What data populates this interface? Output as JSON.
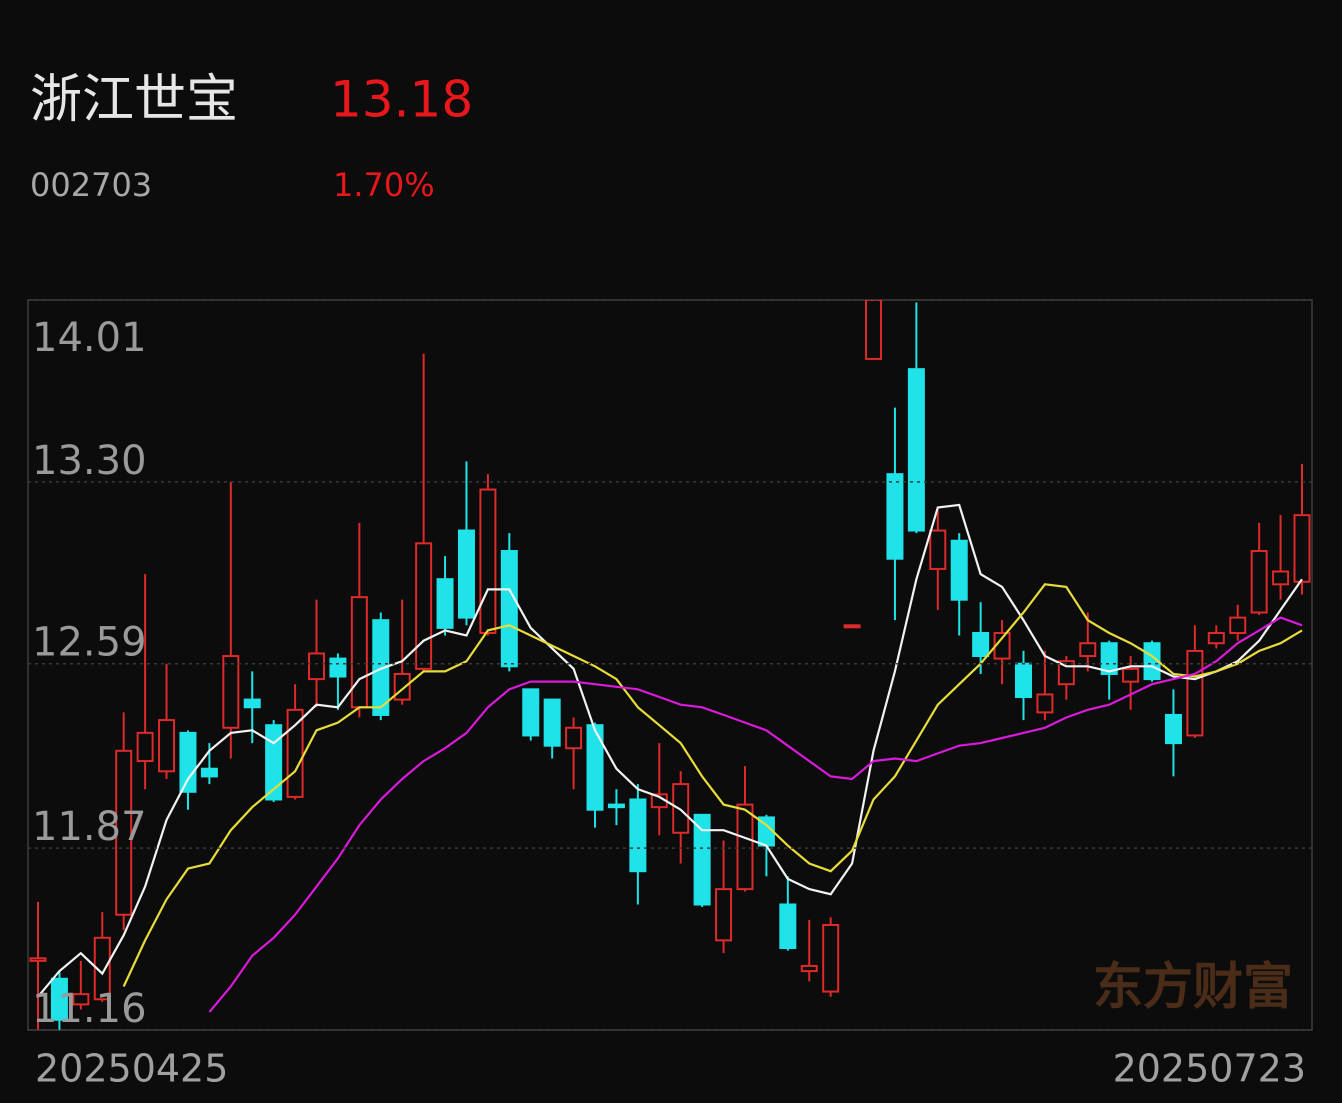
{
  "chart_data": {
    "type": "candlestick",
    "title": "浙江世宝",
    "subtitle": "002703",
    "price": "13.18",
    "change": "1.70%",
    "watermark": "东方财富",
    "up_color": "#dd2a2a",
    "down_color": "#1fe3e8",
    "ylim": [
      11.16,
      14.01
    ],
    "yticks": [
      14.01,
      {
        "value": 13.3,
        "label": "13.30"
      },
      12.59,
      11.87,
      11.16
    ],
    "grid": true,
    "categories": [
      "20250425",
      null,
      null,
      null,
      null,
      null,
      null,
      null,
      null,
      null,
      null,
      null,
      null,
      null,
      null,
      null,
      null,
      null,
      null,
      null,
      null,
      null,
      null,
      null,
      null,
      null,
      null,
      null,
      null,
      null,
      null,
      null,
      null,
      null,
      null,
      null,
      null,
      null,
      null,
      null,
      null,
      null,
      null,
      null,
      null,
      null,
      null,
      null,
      null,
      null,
      null,
      null,
      null,
      null,
      null,
      null,
      null,
      null,
      null,
      "20250723"
    ],
    "open": [
      11.43,
      11.36,
      11.26,
      11.28,
      11.61,
      12.21,
      12.17,
      12.32,
      12.18,
      12.34,
      12.45,
      12.35,
      12.07,
      12.53,
      12.61,
      12.42,
      12.76,
      12.45,
      12.57,
      12.92,
      13.11,
      12.71,
      13.03,
      12.49,
      12.45,
      12.26,
      12.35,
      12.04,
      12.06,
      12.03,
      11.93,
      12.0,
      11.51,
      11.71,
      11.99,
      11.65,
      11.39,
      11.31,
      12.74,
      13.78,
      13.33,
      13.74,
      12.96,
      13.07,
      12.71,
      12.61,
      12.59,
      12.4,
      12.51,
      12.62,
      12.67,
      12.52,
      12.67,
      12.39,
      12.31,
      12.67,
      12.71,
      12.79,
      12.9,
      12.91
    ],
    "high": [
      11.66,
      11.39,
      11.43,
      11.62,
      12.4,
      12.94,
      12.59,
      12.33,
      12.28,
      13.3,
      12.56,
      12.37,
      12.51,
      12.84,
      12.63,
      13.14,
      12.79,
      12.84,
      13.8,
      13.01,
      13.38,
      13.33,
      13.1,
      12.49,
      12.45,
      12.38,
      12.36,
      12.1,
      12.12,
      12.28,
      12.17,
      12.0,
      11.9,
      12.19,
      12.0,
      11.76,
      11.59,
      11.6,
      12.74,
      14.01,
      13.59,
      14.0,
      13.19,
      13.1,
      12.83,
      12.76,
      12.64,
      12.64,
      12.62,
      12.79,
      12.68,
      12.62,
      12.68,
      12.49,
      12.74,
      12.74,
      12.82,
      13.14,
      13.17,
      13.37
    ],
    "low": [
      11.16,
      11.16,
      11.24,
      11.27,
      11.55,
      12.1,
      12.14,
      12.02,
      12.12,
      12.22,
      12.28,
      12.05,
      12.06,
      12.42,
      12.41,
      12.38,
      12.37,
      12.43,
      12.56,
      12.7,
      12.74,
      12.7,
      12.56,
      12.29,
      12.22,
      12.1,
      11.95,
      11.96,
      11.65,
      11.92,
      11.81,
      11.64,
      11.46,
      11.7,
      11.76,
      11.47,
      11.35,
      11.29,
      12.74,
      13.78,
      12.76,
      13.1,
      12.8,
      12.7,
      12.55,
      12.51,
      12.37,
      12.37,
      12.45,
      12.56,
      12.45,
      12.41,
      12.52,
      12.15,
      12.3,
      12.65,
      12.68,
      12.78,
      12.84,
      12.86
    ],
    "close": [
      11.44,
      11.2,
      11.3,
      11.52,
      12.25,
      12.32,
      12.37,
      12.09,
      12.15,
      12.62,
      12.42,
      12.06,
      12.41,
      12.63,
      12.54,
      12.85,
      12.39,
      12.55,
      13.06,
      12.73,
      12.77,
      13.27,
      12.58,
      12.31,
      12.27,
      12.34,
      12.02,
      12.03,
      11.78,
      12.08,
      12.12,
      11.65,
      11.71,
      12.04,
      11.88,
      11.48,
      11.41,
      11.57,
      12.74,
      14.01,
      13.0,
      13.11,
      13.11,
      12.84,
      12.62,
      12.71,
      12.46,
      12.47,
      12.6,
      12.67,
      12.55,
      12.57,
      12.53,
      12.28,
      12.64,
      12.71,
      12.77,
      13.03,
      12.95,
      13.17
    ],
    "lines": [
      {
        "color": "#f2f2f2",
        "values": [
          11.29,
          11.39,
          11.46,
          11.38,
          11.53,
          11.72,
          11.98,
          12.14,
          12.25,
          12.32,
          12.33,
          12.28,
          12.35,
          12.43,
          12.42,
          12.53,
          12.57,
          12.6,
          12.68,
          12.72,
          12.7,
          12.88,
          12.88,
          12.73,
          12.65,
          12.57,
          12.33,
          12.18,
          12.1,
          12.07,
          12.02,
          11.94,
          11.94,
          11.91,
          11.88,
          11.75,
          11.71,
          11.69,
          11.81,
          12.25,
          12.56,
          12.92,
          13.2,
          13.21,
          12.94,
          12.89,
          12.76,
          12.62,
          12.58,
          12.58,
          12.56,
          12.58,
          12.58,
          12.54,
          12.53,
          12.56,
          12.6,
          12.68,
          12.8,
          12.92
        ]
      },
      {
        "color": "#e8dc3a",
        "values": [
          null,
          null,
          null,
          null,
          11.33,
          11.51,
          11.67,
          11.79,
          11.81,
          11.94,
          12.03,
          12.1,
          12.17,
          12.33,
          12.36,
          12.42,
          12.42,
          12.49,
          12.56,
          12.56,
          12.6,
          12.72,
          12.74,
          12.7,
          12.66,
          12.62,
          12.58,
          12.53,
          12.42,
          12.35,
          12.28,
          12.15,
          12.04,
          12.02,
          11.96,
          11.88,
          11.81,
          11.78,
          11.86,
          12.06,
          12.15,
          12.29,
          12.43,
          12.51,
          12.59,
          12.69,
          12.79,
          12.9,
          12.89,
          12.76,
          12.71,
          12.67,
          12.62,
          12.55,
          12.54,
          12.56,
          12.59,
          12.64,
          12.67,
          12.72
        ]
      },
      {
        "color": "#d81bd8",
        "values": [
          null,
          null,
          null,
          null,
          null,
          null,
          null,
          null,
          11.23,
          11.33,
          11.45,
          11.52,
          11.61,
          11.72,
          11.83,
          11.96,
          12.06,
          12.14,
          12.21,
          12.26,
          12.32,
          12.42,
          12.49,
          12.52,
          12.52,
          12.52,
          12.51,
          12.5,
          12.49,
          12.46,
          12.43,
          12.42,
          12.39,
          12.36,
          12.33,
          12.27,
          12.21,
          12.15,
          12.14,
          12.21,
          12.22,
          12.21,
          12.24,
          12.27,
          12.28,
          12.3,
          12.32,
          12.34,
          12.38,
          12.41,
          12.43,
          12.47,
          12.51,
          12.53,
          12.55,
          12.6,
          12.67,
          12.72,
          12.77,
          12.74
        ]
      }
    ]
  }
}
